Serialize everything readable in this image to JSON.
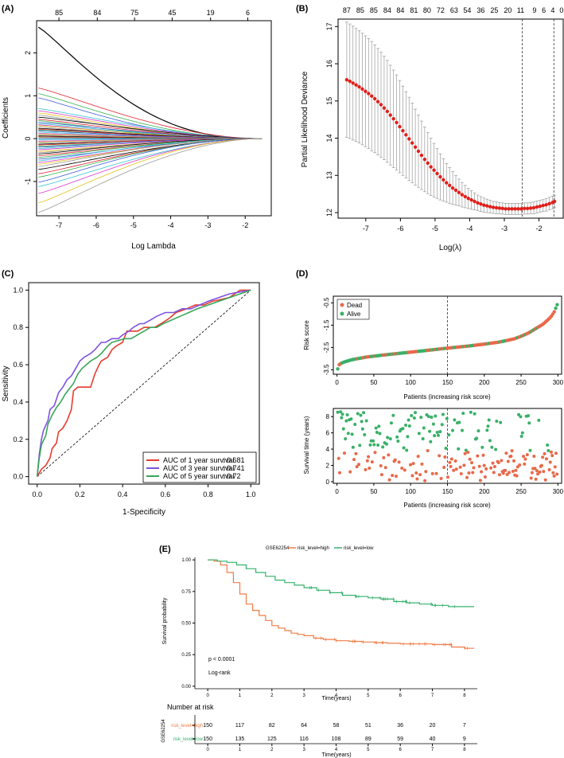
{
  "chart_data": [
    {
      "panel": "A",
      "type": "line",
      "title": "",
      "panel_label": "(A)",
      "xlabel": "Log Lambda",
      "ylabel": "Coefficients",
      "xlim": [
        -7.6,
        -1.3
      ],
      "ylim": [
        -1.8,
        2.75
      ],
      "xticks": [
        "-7",
        "-6",
        "-5",
        "-4",
        "-3",
        "-2"
      ],
      "xtick_values": [
        -7,
        -6,
        -5,
        -4,
        -3,
        -2
      ],
      "yticks": [
        "-1",
        "0",
        "1",
        "2"
      ],
      "ytick_values": [
        -1,
        0,
        1,
        2
      ],
      "top_ticks": [
        "85",
        "84",
        "75",
        "45",
        "19",
        "6"
      ],
      "top_tick_values": [
        -7.0,
        -5.97,
        -4.97,
        -3.96,
        -2.93,
        -1.93
      ],
      "lambda_start": -7.55,
      "lambda_end": -1.55,
      "series_colors": [
        "#000000",
        "#e0212d",
        "#35b14a",
        "#3a5bd9",
        "#36c4d0",
        "#d736c9",
        "#e2c21b",
        "#9a9a9a"
      ],
      "coef_start": [
        2.6,
        1.18,
        1.05,
        0.95,
        0.7,
        0.65,
        0.6,
        0.55,
        0.5,
        0.45,
        0.42,
        0.38,
        0.35,
        0.32,
        0.3,
        0.27,
        0.24,
        0.22,
        0.2,
        0.18,
        0.15,
        0.12,
        0.1,
        0.08,
        0.06,
        0.04,
        0.02,
        0.0,
        -0.03,
        -0.06,
        -0.08,
        -0.1,
        -0.13,
        -0.15,
        -0.18,
        -0.2,
        -0.23,
        -0.26,
        -0.3,
        -0.33,
        -0.36,
        -0.4,
        -0.44,
        -0.48,
        -0.52,
        -0.56,
        -0.6,
        -0.65,
        -0.72,
        -0.82,
        -0.9,
        -1.02,
        -1.12,
        -1.28,
        -1.5,
        -1.72
      ],
      "coef_decay": [
        0.95,
        0.55,
        0.65,
        0.75,
        0.45,
        0.5,
        0.55,
        0.6,
        0.4,
        0.5,
        0.7,
        0.45,
        0.55,
        0.6,
        0.5,
        0.65,
        0.45,
        0.55,
        0.7,
        0.5,
        0.6,
        0.45,
        0.55,
        0.5,
        0.6,
        0.5,
        0.55,
        0.6,
        0.5,
        0.45,
        0.55,
        0.6,
        0.5,
        0.65,
        0.5,
        0.55,
        0.45,
        0.6,
        0.5,
        0.55,
        0.6,
        0.5,
        0.55,
        0.45,
        0.6,
        0.5,
        0.55,
        0.6,
        0.5,
        0.55,
        0.6,
        0.65,
        0.5,
        0.55,
        0.6,
        0.55
      ]
    },
    {
      "panel": "B",
      "type": "scatter",
      "title": "",
      "panel_label": "(B)",
      "xlabel": "Log(λ)",
      "ylabel": "Partial Likelihood Deviance",
      "xlim": [
        -7.8,
        -1.3
      ],
      "ylim": [
        11.85,
        17.2
      ],
      "xticks": [
        "-7",
        "-6",
        "-5",
        "-4",
        "-3",
        "-2"
      ],
      "xtick_values": [
        -7,
        -6,
        -5,
        -4,
        -3,
        -2
      ],
      "yticks": [
        "12",
        "13",
        "14",
        "15",
        "16",
        "17"
      ],
      "ytick_values": [
        12,
        13,
        14,
        15,
        16,
        17
      ],
      "top_ticks": [
        "87",
        "85",
        "85",
        "84",
        "84",
        "81",
        "80",
        "72",
        "63",
        "54",
        "36",
        "25",
        "20",
        "11",
        "9",
        "6",
        "4",
        "0"
      ],
      "top_tick_values": [
        -7.55,
        -7.16,
        -6.77,
        -6.38,
        -6.0,
        -5.61,
        -5.23,
        -4.84,
        -4.45,
        -4.07,
        -3.68,
        -3.29,
        -2.9,
        -2.53,
        -2.13,
        -1.86,
        -1.6,
        -1.35
      ],
      "vlines": [
        -2.48,
        -1.57
      ],
      "loglambda": [
        -7.55,
        -7.46,
        -7.37,
        -7.28,
        -7.19,
        -7.1,
        -7.01,
        -6.92,
        -6.83,
        -6.74,
        -6.65,
        -6.56,
        -6.47,
        -6.38,
        -6.29,
        -6.2,
        -6.11,
        -6.02,
        -5.93,
        -5.84,
        -5.75,
        -5.66,
        -5.57,
        -5.48,
        -5.39,
        -5.3,
        -5.21,
        -5.12,
        -5.03,
        -4.94,
        -4.85,
        -4.76,
        -4.67,
        -4.58,
        -4.49,
        -4.4,
        -4.31,
        -4.22,
        -4.13,
        -4.04,
        -3.95,
        -3.86,
        -3.77,
        -3.68,
        -3.59,
        -3.5,
        -3.41,
        -3.32,
        -3.23,
        -3.14,
        -3.05,
        -2.96,
        -2.87,
        -2.78,
        -2.69,
        -2.6,
        -2.51,
        -2.42,
        -2.33,
        -2.24,
        -2.15,
        -2.06,
        -1.97,
        -1.88,
        -1.79,
        -1.7,
        -1.61,
        -1.55
      ],
      "deviance": [
        15.57,
        15.53,
        15.48,
        15.43,
        15.38,
        15.32,
        15.26,
        15.2,
        15.13,
        15.06,
        14.98,
        14.9,
        14.81,
        14.72,
        14.62,
        14.52,
        14.42,
        14.31,
        14.2,
        14.09,
        13.98,
        13.87,
        13.76,
        13.65,
        13.54,
        13.43,
        13.33,
        13.23,
        13.14,
        13.05,
        12.96,
        12.88,
        12.8,
        12.73,
        12.66,
        12.6,
        12.54,
        12.48,
        12.43,
        12.38,
        12.34,
        12.3,
        12.26,
        12.23,
        12.2,
        12.18,
        12.16,
        12.14,
        12.13,
        12.12,
        12.11,
        12.1,
        12.1,
        12.1,
        12.1,
        12.1,
        12.1,
        12.11,
        12.11,
        12.12,
        12.13,
        12.15,
        12.17,
        12.19,
        12.21,
        12.24,
        12.27,
        12.3
      ],
      "error_halfwidth": [
        1.55,
        1.54,
        1.53,
        1.52,
        1.51,
        1.5,
        1.49,
        1.48,
        1.47,
        1.45,
        1.43,
        1.41,
        1.39,
        1.37,
        1.34,
        1.31,
        1.28,
        1.24,
        1.2,
        1.16,
        1.12,
        1.07,
        1.02,
        0.97,
        0.92,
        0.87,
        0.82,
        0.77,
        0.72,
        0.67,
        0.62,
        0.57,
        0.52,
        0.48,
        0.44,
        0.4,
        0.36,
        0.33,
        0.3,
        0.27,
        0.25,
        0.23,
        0.21,
        0.2,
        0.19,
        0.18,
        0.17,
        0.16,
        0.16,
        0.15,
        0.15,
        0.15,
        0.15,
        0.15,
        0.15,
        0.15,
        0.15,
        0.15,
        0.15,
        0.15,
        0.16,
        0.16,
        0.16,
        0.16,
        0.17,
        0.17,
        0.17,
        0.17
      ]
    },
    {
      "panel": "C",
      "type": "line",
      "title": "",
      "panel_label": "(C)",
      "xlabel": "1-Specificity",
      "ylabel": "Sensitivity",
      "xlim": [
        -0.04,
        1.04
      ],
      "ylim": [
        -0.04,
        1.04
      ],
      "xticks": [
        "0.0",
        "0.2",
        "0.4",
        "0.6",
        "0.8",
        "1.0"
      ],
      "xtick_values": [
        0,
        0.2,
        0.4,
        0.6,
        0.8,
        1.0
      ],
      "yticks": [
        "0.0",
        "0.2",
        "0.4",
        "0.6",
        "0.8",
        "1.0"
      ],
      "ytick_values": [
        0,
        0.2,
        0.4,
        0.6,
        0.8,
        1.0
      ],
      "series": [
        {
          "name": "AUC of 1 year survival",
          "auc": "0.681",
          "color": "#e63b2e",
          "x": [
            0,
            0.02,
            0.04,
            0.06,
            0.07,
            0.09,
            0.1,
            0.12,
            0.14,
            0.16,
            0.17,
            0.19,
            0.21,
            0.23,
            0.25,
            0.27,
            0.29,
            0.3,
            0.33,
            0.35,
            0.37,
            0.4,
            0.42,
            0.45,
            0.47,
            0.5,
            0.53,
            0.55,
            0.58,
            0.62,
            0.65,
            0.7,
            0.74,
            0.78,
            0.82,
            0.86,
            0.9,
            0.95,
            1.0
          ],
          "y": [
            0,
            0.04,
            0.06,
            0.1,
            0.15,
            0.18,
            0.24,
            0.26,
            0.3,
            0.36,
            0.46,
            0.48,
            0.48,
            0.48,
            0.48,
            0.55,
            0.6,
            0.62,
            0.64,
            0.68,
            0.7,
            0.72,
            0.78,
            0.78,
            0.78,
            0.8,
            0.8,
            0.8,
            0.82,
            0.85,
            0.88,
            0.9,
            0.92,
            0.92,
            0.94,
            0.95,
            0.96,
            1.0,
            1.0
          ]
        },
        {
          "name": "AUC of 3 year survival",
          "auc": "0.741",
          "color": "#7d53e0",
          "x": [
            0,
            0.01,
            0.02,
            0.03,
            0.05,
            0.06,
            0.08,
            0.1,
            0.12,
            0.14,
            0.16,
            0.18,
            0.2,
            0.22,
            0.25,
            0.27,
            0.3,
            0.32,
            0.35,
            0.38,
            0.4,
            0.43,
            0.45,
            0.48,
            0.5,
            0.53,
            0.56,
            0.6,
            0.64,
            0.68,
            0.72,
            0.76,
            0.8,
            0.85,
            0.9,
            0.95,
            1.0
          ],
          "y": [
            0,
            0.12,
            0.2,
            0.25,
            0.3,
            0.36,
            0.38,
            0.45,
            0.48,
            0.52,
            0.54,
            0.58,
            0.62,
            0.64,
            0.66,
            0.68,
            0.72,
            0.72,
            0.74,
            0.74,
            0.76,
            0.78,
            0.8,
            0.82,
            0.82,
            0.84,
            0.86,
            0.88,
            0.88,
            0.9,
            0.9,
            0.92,
            0.94,
            0.96,
            0.98,
            0.99,
            1.0
          ]
        },
        {
          "name": "AUC of 5 year survival",
          "auc": "0.72",
          "color": "#3aa65a",
          "x": [
            0,
            0.01,
            0.02,
            0.04,
            0.05,
            0.07,
            0.09,
            0.11,
            0.13,
            0.15,
            0.17,
            0.19,
            0.21,
            0.23,
            0.25,
            0.28,
            0.3,
            0.33,
            0.35,
            0.38,
            0.41,
            0.44,
            0.47,
            0.5,
            0.53,
            0.56,
            0.59,
            0.63,
            0.67,
            0.71,
            0.75,
            0.8,
            0.85,
            0.9,
            0.95,
            1.0
          ],
          "y": [
            0,
            0.1,
            0.17,
            0.22,
            0.28,
            0.33,
            0.37,
            0.4,
            0.44,
            0.47,
            0.5,
            0.55,
            0.58,
            0.6,
            0.62,
            0.64,
            0.66,
            0.7,
            0.72,
            0.73,
            0.74,
            0.74,
            0.76,
            0.78,
            0.8,
            0.8,
            0.82,
            0.84,
            0.86,
            0.88,
            0.9,
            0.92,
            0.94,
            0.96,
            0.98,
            1.0
          ]
        }
      ]
    },
    {
      "panel": "D",
      "type": "scatter",
      "title": "",
      "panel_label": "(D)",
      "subplots": [
        {
          "name": "risk-score",
          "xlabel": "Patients (increasing risk score)",
          "ylabel": "Risk score",
          "xlim": [
            -5,
            305
          ],
          "ylim": [
            -3.7,
            -0.2
          ],
          "xticks": [
            "0",
            "50",
            "100",
            "150",
            "200",
            "250",
            "300"
          ],
          "xtick_values": [
            0,
            50,
            100,
            150,
            200,
            250,
            300
          ],
          "yticks": [
            "-3.5",
            "-2.5",
            "-1.5",
            "-0.5"
          ],
          "ytick_values": [
            -3.5,
            -2.5,
            -1.5,
            -0.5
          ],
          "vline": 150,
          "legend": [
            {
              "label": "Dead",
              "color": "#e8694a"
            },
            {
              "label": "Alive",
              "color": "#39b068"
            }
          ],
          "n_patients": 300,
          "curve_x": [
            0,
            2,
            5,
            10,
            20,
            40,
            60,
            80,
            100,
            120,
            150,
            180,
            200,
            220,
            240,
            250,
            260,
            270,
            280,
            290,
            295,
            300
          ],
          "curve_y": [
            -3.62,
            -3.3,
            -3.22,
            -3.15,
            -3.05,
            -2.93,
            -2.85,
            -2.78,
            -2.71,
            -2.64,
            -2.53,
            -2.43,
            -2.35,
            -2.26,
            -2.12,
            -2.0,
            -1.85,
            -1.65,
            -1.45,
            -1.15,
            -0.9,
            -0.5
          ]
        },
        {
          "name": "survival-time",
          "xlabel": "Patients (increasing risk score)",
          "ylabel": "Survival time (years)",
          "xlim": [
            -5,
            305
          ],
          "ylim": [
            -0.2,
            9
          ],
          "xticks": [
            "0",
            "50",
            "100",
            "150",
            "200",
            "250",
            "300"
          ],
          "xtick_values": [
            0,
            50,
            100,
            150,
            200,
            250,
            300
          ],
          "yticks": [
            "0",
            "2",
            "4",
            "6",
            "8"
          ],
          "ytick_values": [
            0,
            2,
            4,
            6,
            8
          ],
          "vline": 150
        }
      ]
    },
    {
      "panel": "E",
      "type": "line",
      "title": "GSE62254",
      "panel_label": "(E)",
      "xlabel": "Time(years)",
      "ylabel": "Survival probability",
      "xlim": [
        -0.4,
        8.4
      ],
      "ylim": [
        -0.02,
        1.02
      ],
      "xticks": [
        "0",
        "1",
        "2",
        "3",
        "4",
        "5",
        "6",
        "7",
        "8"
      ],
      "xtick_values": [
        0,
        1,
        2,
        3,
        4,
        5,
        6,
        7,
        8
      ],
      "yticks": [
        "0.00",
        "0.25",
        "0.50",
        "0.75",
        "1.00"
      ],
      "ytick_values": [
        0,
        0.25,
        0.5,
        0.75,
        1.0
      ],
      "pvalue": "p < 0.0001",
      "test": "Log-rank",
      "series": [
        {
          "name": "risk_level=high",
          "color": "#f07c45",
          "x": [
            0,
            0.2,
            0.4,
            0.6,
            0.8,
            1.0,
            1.2,
            1.4,
            1.6,
            1.8,
            2.0,
            2.2,
            2.4,
            2.6,
            2.8,
            3.0,
            3.3,
            3.6,
            4.0,
            4.4,
            4.8,
            5.2,
            5.6,
            6.0,
            6.5,
            7.0,
            7.3,
            7.6,
            8.0,
            8.3
          ],
          "y": [
            1.0,
            0.99,
            0.96,
            0.9,
            0.82,
            0.73,
            0.65,
            0.6,
            0.56,
            0.52,
            0.48,
            0.46,
            0.44,
            0.42,
            0.41,
            0.4,
            0.38,
            0.37,
            0.36,
            0.355,
            0.35,
            0.345,
            0.34,
            0.335,
            0.335,
            0.33,
            0.33,
            0.31,
            0.3,
            0.3
          ]
        },
        {
          "name": "risk_level=low",
          "color": "#35b26b",
          "x": [
            0,
            0.3,
            0.6,
            0.9,
            1.2,
            1.5,
            1.8,
            2.1,
            2.4,
            2.7,
            3.0,
            3.4,
            3.8,
            4.2,
            4.6,
            5.0,
            5.4,
            5.8,
            6.2,
            6.6,
            7.0,
            7.5,
            8.0,
            8.3
          ],
          "y": [
            1.0,
            0.99,
            0.98,
            0.96,
            0.93,
            0.9,
            0.87,
            0.84,
            0.82,
            0.8,
            0.78,
            0.76,
            0.74,
            0.72,
            0.71,
            0.7,
            0.69,
            0.67,
            0.66,
            0.65,
            0.64,
            0.63,
            0.63,
            0.63
          ]
        }
      ],
      "risk_table": {
        "title": "Number at risk",
        "strata_label": "GSE62254",
        "xlabel": "Time(years)",
        "rows": [
          {
            "label": "risk_level=high",
            "color": "#f07c45",
            "values": [
              "150",
              "117",
              "82",
              "64",
              "58",
              "51",
              "36",
              "20",
              "7"
            ]
          },
          {
            "label": "risk_level=low",
            "color": "#35b26b",
            "values": [
              "150",
              "135",
              "125",
              "116",
              "108",
              "89",
              "59",
              "40",
              "9"
            ]
          }
        ]
      }
    }
  ]
}
